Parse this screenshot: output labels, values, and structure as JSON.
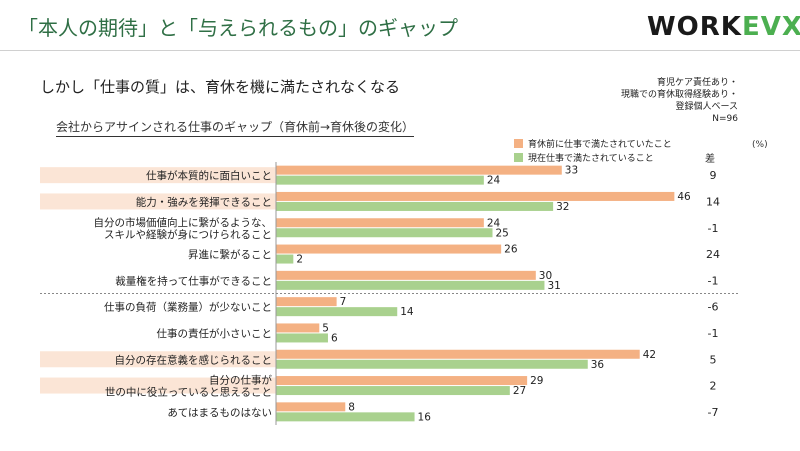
{
  "header": {
    "title": "「本人の期待」と「与えられるもの」のギャップ",
    "logo_main": "WORK",
    "logo_accent": "EVX"
  },
  "subtitle": "しかし「仕事の質」は、育休を機に満たされなくなる",
  "note": {
    "line1": "育児ケア責任あり・",
    "line2": "現職での育休取得経験あり・",
    "line3": "登録個人ベース",
    "line4": "N=96"
  },
  "colors": {
    "before": "#f4b183",
    "after": "#a9d18e",
    "highlight": "#fbe5d6",
    "title": "#2f6f45"
  },
  "chart_data": {
    "type": "bar",
    "orientation": "horizontal",
    "title": "会社からアサインされる仕事のギャップ（育休前→育休後の変化）",
    "unit": "(%)",
    "diff_label": "差",
    "categories": [
      "仕事が本質的に面白いこと",
      "能力・強みを発揮できること",
      "自分の市場価値向上に繋がるような、\nスキルや経験が身につけられること",
      "昇進に繋がること",
      "裁量権を持って仕事ができること",
      "仕事の負荷（業務量）が少ないこと",
      "仕事の責任が小さいこと",
      "自分の存在意義を感じられること",
      "自分の仕事が\n世の中に役立っていると思えること",
      "あてはまるものはない"
    ],
    "highlighted": [
      true,
      true,
      false,
      false,
      false,
      false,
      false,
      true,
      true,
      false
    ],
    "series": [
      {
        "name": "育休前に仕事で満たされていたこと",
        "values": [
          33,
          46,
          24,
          26,
          30,
          7,
          5,
          42,
          29,
          8
        ]
      },
      {
        "name": "現在仕事で満たされていること",
        "values": [
          24,
          32,
          25,
          2,
          31,
          14,
          6,
          36,
          27,
          16
        ]
      }
    ],
    "diff": [
      "9",
      "14",
      "-1",
      "24",
      "-1",
      "-6",
      "-1",
      "5",
      "2",
      "-7"
    ],
    "xlim": [
      0,
      50
    ],
    "grid": false,
    "legend_position": "top-right"
  }
}
